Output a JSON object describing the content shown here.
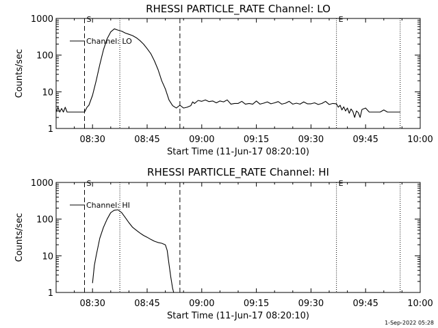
{
  "chart_data": [
    {
      "type": "line",
      "title": "RHESSI PARTICLE_RATE Channel: LO",
      "xlabel": "Start Time (11-Jun-17 08:20:10)",
      "ylabel": "Counts/sec",
      "x_unit": "minutes after 08:20:10",
      "xlim": [
        0,
        100
      ],
      "ylim": [
        1,
        1000
      ],
      "yscale": "log",
      "x_ticks": [
        {
          "x": 10,
          "label": "08:30"
        },
        {
          "x": 25,
          "label": "08:45"
        },
        {
          "x": 40,
          "label": "09:00"
        },
        {
          "x": 55,
          "label": "09:15"
        },
        {
          "x": 70,
          "label": "09:30"
        },
        {
          "x": 85,
          "label": "09:45"
        },
        {
          "x": 100,
          "label": "10:00"
        }
      ],
      "y_ticks": [
        {
          "y": 1,
          "label": "1"
        },
        {
          "y": 10,
          "label": "10"
        },
        {
          "y": 100,
          "label": "100"
        },
        {
          "y": 1000,
          "label": "1000"
        }
      ],
      "legend": {
        "label": "Channel: LO",
        "placement": "top-left"
      },
      "markers": [
        {
          "x": 7.8,
          "style": "dashed",
          "label": "S"
        },
        {
          "x": 17.5,
          "style": "dotted",
          "label": ""
        },
        {
          "x": 34.0,
          "style": "dashed",
          "label": ""
        },
        {
          "x": 77.0,
          "style": "dotted",
          "label": "E"
        },
        {
          "x": 94.5,
          "style": "dotted",
          "label": ""
        }
      ],
      "series": [
        {
          "x": [
            0,
            0.5,
            1,
            1.5,
            2,
            2.5,
            3,
            4,
            5,
            6,
            7,
            7.8,
            8.5,
            9,
            10,
            11,
            12,
            13,
            14,
            15,
            16,
            17,
            18,
            19,
            20,
            21,
            22,
            23,
            24,
            25,
            26,
            27,
            28,
            29,
            30,
            31,
            32,
            33,
            34,
            35,
            36,
            37,
            37.5,
            38,
            39,
            40,
            41,
            42,
            43,
            44,
            45,
            46,
            47,
            48,
            49,
            50,
            51,
            52,
            53,
            54,
            55,
            56,
            57,
            58,
            59,
            60,
            61,
            62,
            63,
            64,
            65,
            66,
            67,
            68,
            69,
            70,
            71,
            72,
            73,
            74,
            75,
            76,
            77,
            77.5,
            78,
            78.5,
            79,
            79.5,
            80,
            80.5,
            81,
            81.5,
            82,
            82.5,
            83,
            83.5,
            84,
            85,
            86,
            87,
            88,
            89,
            90,
            91,
            92,
            93,
            94.5
          ],
          "values": [
            2.8,
            3.8,
            2.8,
            3.5,
            2.8,
            3.8,
            2.8,
            2.8,
            2.8,
            2.8,
            2.8,
            2.8,
            3.8,
            4.3,
            8,
            20,
            55,
            140,
            280,
            430,
            520,
            480,
            450,
            400,
            370,
            340,
            300,
            250,
            200,
            150,
            110,
            70,
            40,
            20,
            12,
            6,
            4.2,
            3.6,
            4.3,
            3.6,
            3.8,
            4.2,
            5.3,
            4.8,
            5.8,
            5.5,
            6.0,
            5.4,
            5.6,
            5.0,
            5.6,
            5.3,
            6.0,
            4.6,
            4.8,
            4.8,
            5.5,
            4.6,
            4.8,
            4.6,
            5.6,
            4.6,
            4.9,
            5.3,
            4.7,
            5.0,
            5.4,
            4.6,
            4.9,
            5.5,
            4.6,
            4.9,
            4.6,
            5.3,
            4.7,
            4.7,
            5.0,
            4.5,
            4.8,
            5.5,
            4.5,
            4.8,
            4.7,
            3.8,
            4.3,
            3.2,
            3.9,
            3.0,
            3.6,
            2.6,
            3.4,
            2.9,
            2.0,
            3.0,
            2.7,
            2.0,
            3.3,
            3.6,
            2.8,
            2.8,
            2.8,
            2.8,
            3.2,
            2.8,
            2.8,
            2.8,
            2.8
          ]
        }
      ]
    },
    {
      "type": "line",
      "title": "RHESSI PARTICLE_RATE Channel: HI",
      "xlabel": "Start Time (11-Jun-17 08:20:10)",
      "ylabel": "Counts/sec",
      "x_unit": "minutes after 08:20:10",
      "xlim": [
        0,
        100
      ],
      "ylim": [
        1,
        1000
      ],
      "yscale": "log",
      "x_ticks": [
        {
          "x": 10,
          "label": "08:30"
        },
        {
          "x": 25,
          "label": "08:45"
        },
        {
          "x": 40,
          "label": "09:00"
        },
        {
          "x": 55,
          "label": "09:15"
        },
        {
          "x": 70,
          "label": "09:30"
        },
        {
          "x": 85,
          "label": "09:45"
        },
        {
          "x": 100,
          "label": "10:00"
        }
      ],
      "y_ticks": [
        {
          "y": 1,
          "label": "1"
        },
        {
          "y": 10,
          "label": "10"
        },
        {
          "y": 100,
          "label": "100"
        },
        {
          "y": 1000,
          "label": "1000"
        }
      ],
      "legend": {
        "label": "Channel: HI",
        "placement": "top-left"
      },
      "markers": [
        {
          "x": 7.8,
          "style": "dashed",
          "label": "S"
        },
        {
          "x": 17.5,
          "style": "dotted",
          "label": ""
        },
        {
          "x": 34.0,
          "style": "dashed",
          "label": ""
        },
        {
          "x": 77.0,
          "style": "dotted",
          "label": "E"
        },
        {
          "x": 94.5,
          "style": "dotted",
          "label": ""
        }
      ],
      "series": [
        {
          "x": [
            10.0,
            10.5,
            11,
            12,
            13,
            14,
            15,
            16,
            17,
            18,
            19,
            20,
            21,
            22,
            23,
            24,
            25,
            26,
            27,
            28,
            29,
            30,
            30.5,
            31,
            31.5,
            32,
            32.3
          ],
          "values": [
            1.8,
            5.5,
            10,
            30,
            60,
            100,
            150,
            175,
            180,
            150,
            110,
            80,
            60,
            50,
            42,
            36,
            32,
            28,
            25,
            23,
            22,
            20,
            14,
            6,
            2.6,
            1.3,
            1.0
          ]
        }
      ]
    }
  ],
  "footer": {
    "timestamp": "1-Sep-2022 05:28"
  }
}
